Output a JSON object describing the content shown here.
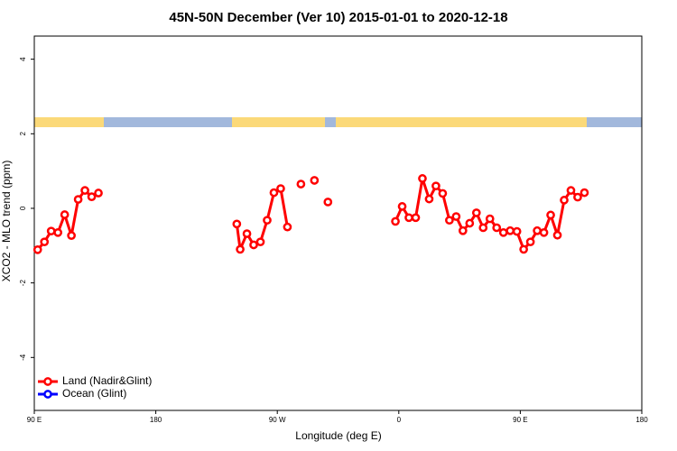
{
  "chart_data": {
    "type": "line",
    "title": "45N-50N December (Ver 10)   2015-01-01 to 2020-12-18",
    "x_label": "Longitude (deg E)",
    "y_label": "XCO2 - MLO trend (ppm)",
    "xlim": [
      90,
      540
    ],
    "xticks": [
      {
        "value": 90,
        "label": "90 E"
      },
      {
        "value": 180,
        "label": "180"
      },
      {
        "value": 270,
        "label": "90 W"
      },
      {
        "value": 360,
        "label": "0"
      },
      {
        "value": 450,
        "label": "90 E"
      },
      {
        "value": 540,
        "label": "180"
      }
    ],
    "ylim": [
      -5.42,
      4.62
    ],
    "yticks": [
      -4,
      -2,
      0,
      2,
      4
    ],
    "legend": "bottom-left",
    "series": [
      {
        "name": "Land (Nadir&Glint)",
        "color": "#ff0000",
        "x": [
          92.5,
          97.5,
          102.5,
          107.5,
          112.5,
          117.5,
          122.5,
          127.5,
          132.5,
          137.5,
          142.5,
          240,
          242.5,
          247.5,
          252.5,
          257.5,
          262.5,
          267.5,
          272.5,
          277.5,
          282.5,
          287.5,
          292.5,
          297.5,
          302.5,
          307.5,
          312.5,
          357.5,
          362.5,
          367.5,
          372.5,
          377.5,
          382.5,
          387.5,
          392.5,
          397.5,
          402.5,
          407.5,
          412.5,
          417.5,
          422.5,
          427.5,
          432.5,
          437.5,
          442.5,
          447.5,
          452.5,
          457.5,
          462.5,
          467.5,
          472.5,
          477.5,
          482.5,
          487.5,
          492.5,
          497.5
        ],
        "values": [
          -1.11,
          -0.9,
          -0.61,
          -0.65,
          -0.17,
          -0.73,
          0.24,
          0.48,
          0.31,
          0.41,
          null,
          -0.42,
          -1.1,
          -0.68,
          -0.98,
          -0.9,
          -0.32,
          0.42,
          0.53,
          -0.5,
          null,
          0.65,
          null,
          0.75,
          null,
          0.17,
          null,
          -0.35,
          0.05,
          -0.25,
          -0.25,
          0.8,
          0.25,
          0.6,
          0.4,
          -0.32,
          -0.22,
          -0.6,
          -0.4,
          -0.12,
          -0.52,
          -0.28,
          -0.52,
          -0.65,
          -0.6,
          -0.62,
          -1.1,
          -0.9,
          -0.6,
          -0.65,
          -0.18,
          -0.72,
          0.22,
          0.48,
          0.3,
          0.42
        ]
      },
      {
        "name": "Ocean (Glint)",
        "color": "#0000ff",
        "x": [],
        "values": []
      }
    ]
  }
}
